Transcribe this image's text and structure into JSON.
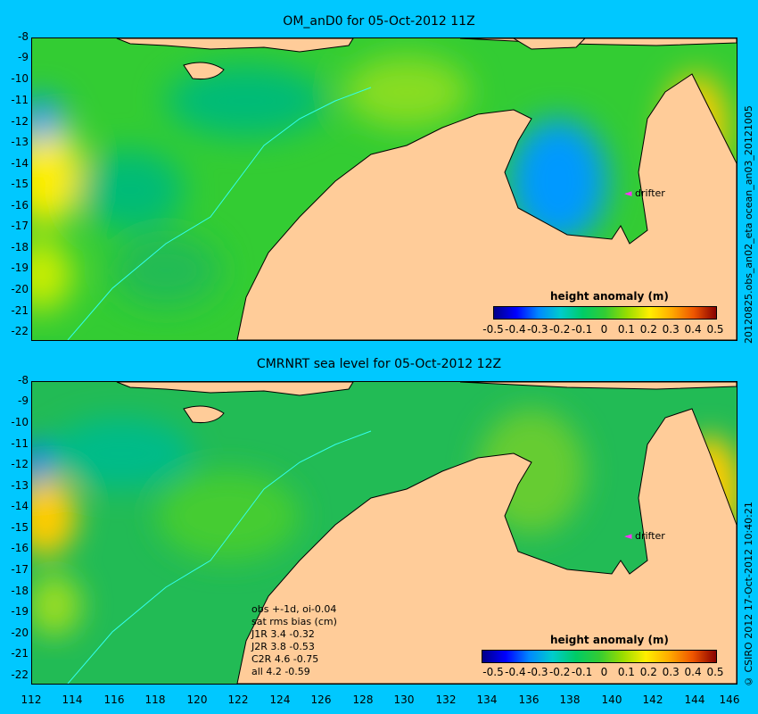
{
  "top_panel": {
    "title": "OM_anD0 for 05-Oct-2012 11Z",
    "side_text": "20120825.obs_an02_eta    ocean_an03_20121005",
    "drifter_label": "drifter",
    "colorbar_title": "height anomaly (m)",
    "colorbar_ticks": [
      "-0.5",
      "-0.4",
      "-0.3",
      "-0.2",
      "-0.1",
      "0",
      "0.1",
      "0.2",
      "0.3",
      "0.4",
      "0.5"
    ],
    "y_ticks": [
      "-8",
      "-9",
      "-10",
      "-11",
      "-12",
      "-13",
      "-14",
      "-15",
      "-16",
      "-17",
      "-18",
      "-19",
      "-20",
      "-21",
      "-22"
    ]
  },
  "bottom_panel": {
    "title": "CMRNRT sea level  for 05-Oct-2012 12Z",
    "side_text": "© CSIRO 2012  17-Oct-2012 10:40:21",
    "drifter_label": "drifter",
    "colorbar_title": "height anomaly (m)",
    "colorbar_ticks": [
      "-0.5",
      "-0.4",
      "-0.3",
      "-0.2",
      "-0.1",
      "0",
      "0.1",
      "0.2",
      "0.3",
      "0.4",
      "0.5"
    ],
    "y_ticks": [
      "-8",
      "-9",
      "-10",
      "-11",
      "-12",
      "-13",
      "-14",
      "-15",
      "-16",
      "-17",
      "-18",
      "-19",
      "-20",
      "-21",
      "-22"
    ],
    "stats": {
      "line1": "obs +-1d, oi-0.04",
      "line2": "sat rms bias (cm)",
      "line3": "J1R   3.4  -0.32",
      "line4": "J2R   3.8  -0.53",
      "line5": "C2R   4.6  -0.75",
      "line6": "all  4.2  -0.59"
    }
  },
  "x_ticks": [
    "112",
    "114",
    "116",
    "118",
    "120",
    "122",
    "124",
    "126",
    "128",
    "130",
    "132",
    "134",
    "136",
    "138",
    "140",
    "142",
    "144",
    "146"
  ],
  "colors": {
    "background": "#00c8ff",
    "land": "#ffcc99",
    "ocean_base": "#33cc33",
    "drifter_marker": "#ff33ff"
  }
}
